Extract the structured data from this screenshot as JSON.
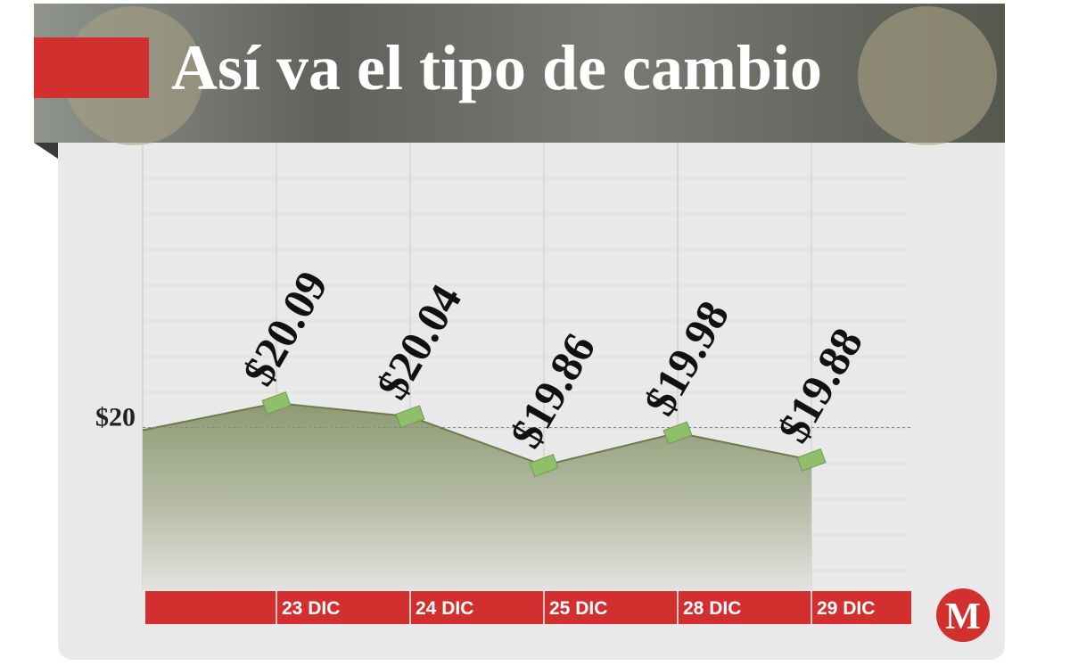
{
  "chart_data": {
    "type": "area",
    "title": "Así va el tipo de cambio",
    "categories": [
      null,
      "23 DIC",
      "24 DIC",
      "25 DIC",
      "28 DIC",
      "29 DIC"
    ],
    "values": [
      19.99,
      20.09,
      20.04,
      19.86,
      19.98,
      19.88
    ],
    "value_labels": [
      null,
      "$20.09",
      "$20.04",
      "$19.86",
      "$19.98",
      "$19.88"
    ],
    "ylim": [
      19.4,
      21.05
    ],
    "yticks": [
      {
        "value": 20,
        "label": "$20"
      }
    ],
    "line_color": "#6b7b4c",
    "marker_color": "#8fbf6a",
    "category_band_color": "#d42f2f",
    "logo": "M"
  }
}
